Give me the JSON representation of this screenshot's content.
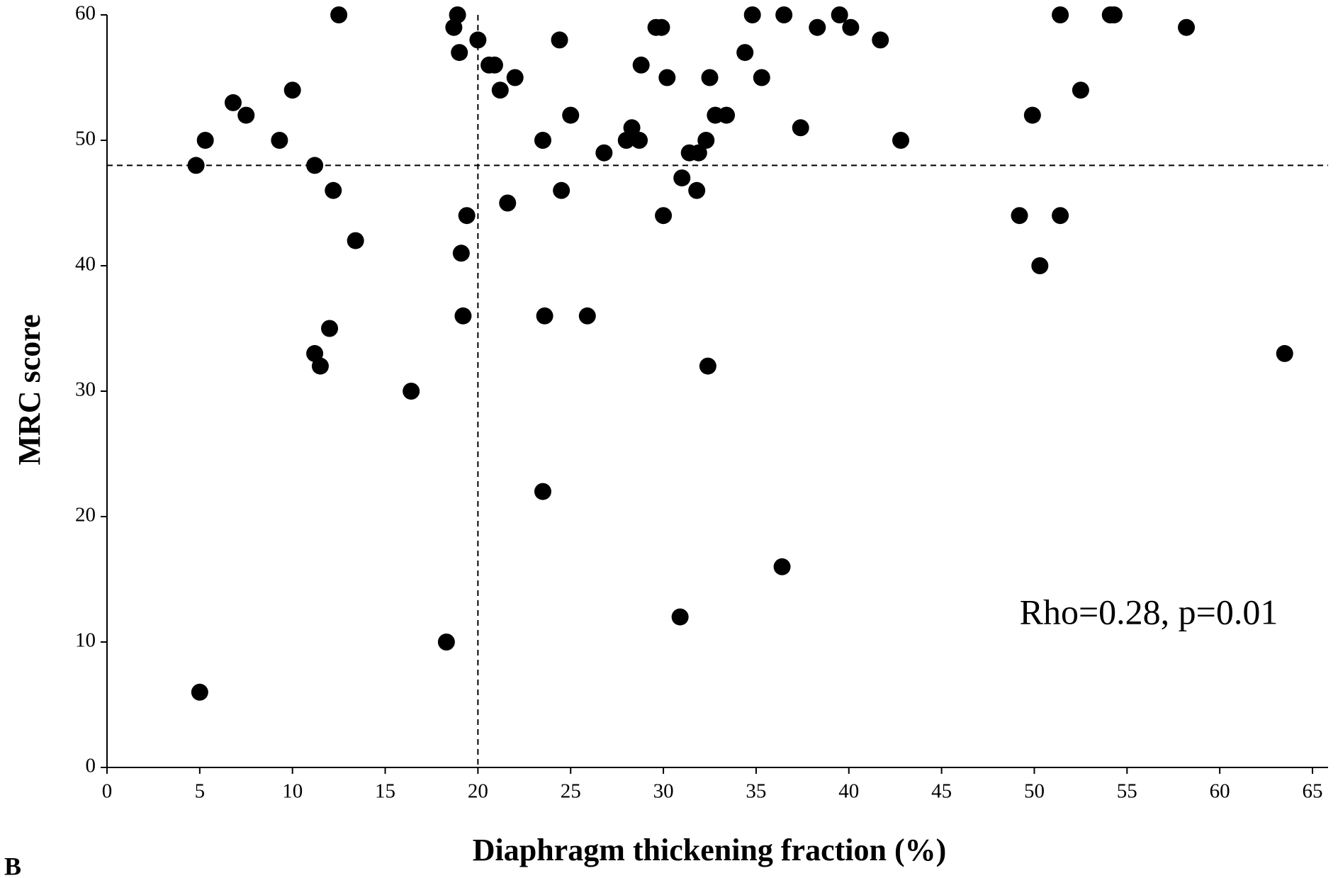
{
  "chart_data": {
    "type": "scatter",
    "xlabel": "Diaphragm thickening fraction (%)",
    "ylabel": "MRC score",
    "annotation": "Rho=0.28, p=0.01",
    "panel_label": "B",
    "color": "#000000",
    "x": [
      4.8,
      5.3,
      5.0,
      6.8,
      7.5,
      9.3,
      10.0,
      11.2,
      12.2,
      12.5,
      13.4,
      12.0,
      11.2,
      11.5,
      16.4,
      18.3,
      18.7,
      18.9,
      19.0,
      19.1,
      19.2,
      19.4,
      20.0,
      20.6,
      20.9,
      21.2,
      21.6,
      22.0,
      23.5,
      23.5,
      23.6,
      24.4,
      24.5,
      25.0,
      25.9,
      26.8,
      28.0,
      28.3,
      28.7,
      28.8,
      29.6,
      29.9,
      30.0,
      30.2,
      30.9,
      31.0,
      31.4,
      31.8,
      31.9,
      32.3,
      32.4,
      32.5,
      32.8,
      33.4,
      34.4,
      34.8,
      35.3,
      36.4,
      36.5,
      37.4,
      38.3,
      39.5,
      40.1,
      41.7,
      42.8,
      49.2,
      49.9,
      50.3,
      51.4,
      51.4,
      52.5,
      54.1,
      54.3,
      58.2,
      63.5
    ],
    "y": [
      48,
      50,
      6,
      53,
      52,
      50,
      54,
      48,
      46,
      60,
      42,
      35,
      33,
      32,
      30,
      10,
      59,
      60,
      57,
      41,
      36,
      44,
      58,
      56,
      56,
      54,
      45,
      55,
      50,
      22,
      36,
      58,
      46,
      52,
      36,
      49,
      50,
      51,
      50,
      56,
      59,
      59,
      44,
      55,
      12,
      47,
      49,
      46,
      49,
      50,
      32,
      55,
      52,
      52,
      57,
      60,
      55,
      16,
      60,
      51,
      59,
      60,
      59,
      58,
      50,
      44,
      52,
      40,
      44,
      60,
      54,
      60,
      60,
      59,
      33
    ],
    "xlim": [
      0,
      65
    ],
    "ylim": [
      0,
      60
    ],
    "xticks": [
      0,
      5,
      10,
      15,
      20,
      25,
      30,
      35,
      40,
      45,
      50,
      55,
      60,
      65
    ],
    "yticks": [
      0,
      10,
      20,
      30,
      40,
      50,
      60
    ],
    "vlines": [
      20
    ],
    "hlines": [
      48
    ]
  }
}
